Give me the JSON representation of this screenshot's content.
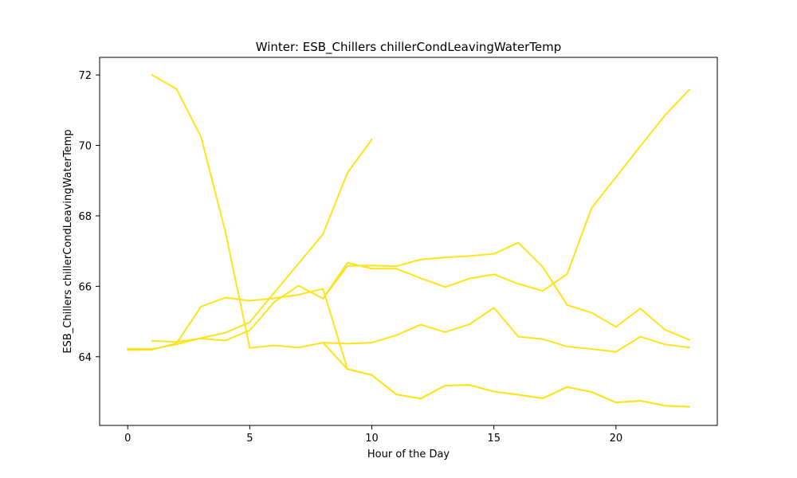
{
  "chart_data": {
    "type": "line",
    "title": "Winter: ESB_Chillers chillerCondLeavingWaterTemp",
    "xlabel": "Hour of the Day",
    "ylabel": "ESB_Chillers chillerCondLeavingWaterTemp",
    "xlim": [
      -1.15,
      24.15
    ],
    "ylim": [
      62.05,
      72.5
    ],
    "xticks": [
      0,
      5,
      10,
      15,
      20
    ],
    "yticks": [
      64,
      66,
      68,
      70,
      72
    ],
    "grid": false,
    "line_color": "#FFE31A",
    "series": [
      {
        "x": [
          1,
          2,
          3,
          4,
          5,
          6,
          7,
          8,
          9,
          10,
          11,
          12,
          13,
          14,
          15,
          16,
          17,
          18,
          19,
          20,
          21,
          22,
          23
        ],
        "values": [
          72.0,
          71.6,
          70.25,
          67.55,
          64.25,
          64.32,
          64.26,
          64.4,
          63.65,
          63.48,
          62.93,
          62.81,
          63.18,
          63.2,
          63.01,
          62.92,
          62.82,
          63.14,
          63.0,
          62.7,
          62.75,
          62.61,
          62.58
        ]
      },
      {
        "x": [
          0,
          1,
          2,
          3,
          4,
          5,
          6,
          7,
          8,
          9,
          10
        ],
        "values": [
          64.22,
          64.22,
          64.35,
          64.53,
          64.68,
          64.98,
          65.82,
          66.65,
          67.48,
          69.22,
          70.17
        ]
      },
      {
        "x": [
          0,
          1,
          2,
          3,
          4,
          5,
          6,
          7,
          8,
          9,
          10,
          11,
          12,
          13,
          14,
          15,
          16,
          17,
          18,
          19,
          20,
          21,
          22,
          23
        ],
        "values": [
          64.19,
          64.2,
          64.38,
          65.42,
          65.68,
          65.59,
          65.66,
          65.76,
          65.93,
          63.65,
          63.48,
          62.93,
          62.81,
          63.18,
          63.2,
          63.01,
          62.92,
          62.82,
          63.14,
          63.0,
          62.7,
          62.75,
          62.61,
          62.58
        ]
      },
      {
        "x": [
          1,
          2,
          3,
          4,
          5,
          6,
          7,
          8,
          9,
          10,
          11,
          12,
          13,
          14,
          15,
          16,
          17,
          18,
          19,
          20,
          21,
          22,
          23
        ],
        "values": [
          64.45,
          64.42,
          64.52,
          64.46,
          64.75,
          65.55,
          66.02,
          65.65,
          66.58,
          66.59,
          66.57,
          66.76,
          66.82,
          66.86,
          66.92,
          67.24,
          66.55,
          65.47,
          65.25,
          64.85,
          65.37,
          64.77,
          64.48
        ]
      },
      {
        "x": [
          8,
          9,
          10,
          11,
          12,
          13,
          14,
          15,
          16,
          17,
          18,
          19,
          20,
          21,
          22,
          23
        ],
        "values": [
          65.65,
          66.67,
          66.5,
          66.5,
          66.23,
          65.98,
          66.22,
          66.34,
          66.07,
          65.87,
          66.35,
          68.22,
          69.1,
          69.98,
          70.85,
          71.58
        ]
      },
      {
        "x": [
          8,
          9,
          10,
          11,
          12,
          13,
          14,
          15,
          16,
          17,
          18,
          19,
          20,
          21,
          22,
          23
        ],
        "values": [
          64.4,
          64.37,
          64.4,
          64.61,
          64.91,
          64.7,
          64.92,
          65.39,
          64.57,
          64.5,
          64.29,
          64.22,
          64.14,
          64.57,
          64.35,
          64.26
        ]
      }
    ]
  }
}
